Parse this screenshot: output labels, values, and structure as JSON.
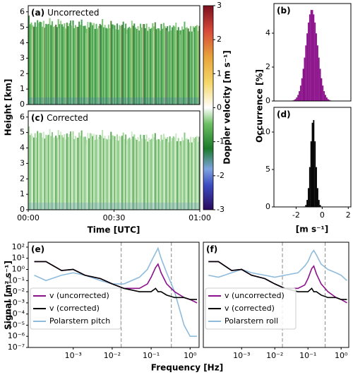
{
  "chart_data": [
    {
      "type": "heatmap",
      "panel": "(a)",
      "title": "Uncorrected",
      "ylabel": "Height [km]",
      "xlim": [
        0,
        60
      ],
      "ylim": [
        0,
        6.4
      ],
      "yticks": [
        0,
        1,
        2,
        3,
        4,
        5,
        6
      ],
      "colorbar": {
        "label": "Doppler velocity [m s⁻¹]",
        "lim": [
          -3,
          3
        ],
        "ticks": [
          -3,
          -2,
          -1,
          0,
          1,
          2,
          3
        ]
      }
    },
    {
      "type": "heatmap",
      "panel": "(c)",
      "title": "Corrected",
      "xlabel": "Time [UTC]",
      "xlim": [
        0,
        60
      ],
      "ylim": [
        0,
        6.4
      ],
      "yticks": [
        0,
        1,
        2,
        3,
        4,
        5,
        6
      ],
      "xticks": [
        {
          "value": 0,
          "label": "00:00"
        },
        {
          "value": 30,
          "label": "00:30"
        },
        {
          "value": 60,
          "label": "01:00"
        }
      ]
    },
    {
      "type": "histogram",
      "panel": "(b)",
      "color": "#8b118b",
      "ylabel": "Occurrence [%]",
      "xlim": [
        -3.7,
        2.2
      ],
      "ylim": [
        0,
        5.75
      ],
      "yticks": [
        0,
        2,
        4
      ],
      "bins": [
        -2.5,
        -2.4,
        -2.3,
        -2.2,
        -2.1,
        -2.0,
        -1.9,
        -1.8,
        -1.7,
        -1.6,
        -1.5,
        -1.4,
        -1.3,
        -1.2,
        -1.1,
        -1.0,
        -0.9,
        -0.8,
        -0.7,
        -0.6,
        -0.5,
        -0.4,
        -0.3,
        -0.2,
        -0.1,
        0.0,
        0.1,
        0.2,
        0.3,
        0.4,
        0.5,
        0.6,
        0.7,
        0.8,
        0.9,
        1.0
      ],
      "counts": [
        0.01,
        0.01,
        0.03,
        0.06,
        0.11,
        0.21,
        0.36,
        0.58,
        0.91,
        1.34,
        1.9,
        2.56,
        3.28,
        3.99,
        4.63,
        5.11,
        5.37,
        5.37,
        5.11,
        4.63,
        3.99,
        3.28,
        2.56,
        1.9,
        1.34,
        0.91,
        0.58,
        0.36,
        0.21,
        0.11,
        0.06,
        0.03,
        0.01,
        0.01,
        0.0
      ]
    },
    {
      "type": "histogram",
      "panel": "(d)",
      "color": "#000000",
      "xlabel": "[m s⁻¹]",
      "xlim": [
        -3.7,
        2.2
      ],
      "ylim": [
        0,
        13.3
      ],
      "yticks": [
        0,
        5,
        10
      ],
      "xticks": [
        -2,
        0,
        2
      ],
      "bins": [
        -1.6,
        -1.5,
        -1.4,
        -1.3,
        -1.2,
        -1.1,
        -1.0,
        -0.9,
        -0.8,
        -0.7,
        -0.6,
        -0.5,
        -0.4,
        -0.3,
        -0.2,
        -0.1,
        0.0,
        0.1,
        0.2,
        0.3
      ],
      "counts": [
        0.0,
        0.01,
        0.06,
        0.26,
        0.93,
        2.51,
        5.32,
        8.76,
        11.24,
        11.6,
        8.76,
        5.32,
        2.51,
        0.93,
        0.26,
        0.06,
        0.01,
        0.0,
        0.0
      ]
    },
    {
      "type": "line",
      "panel": "(e)",
      "ylabel": "Signal [m² s⁻¹]",
      "log_x": true,
      "log_y": true,
      "legend": "lower left",
      "xlim": [
        7e-05,
        1.7
      ],
      "ylim": [
        1e-07,
        275
      ],
      "xticks": [
        {
          "value": 0.001,
          "label": "10⁻³"
        },
        {
          "value": 0.01,
          "label": "10⁻²"
        },
        {
          "value": 0.1,
          "label": "10⁻¹"
        },
        {
          "value": 1,
          "label": "10⁰"
        }
      ],
      "yticks": [
        {
          "value": 1e-07,
          "label": "10⁻⁷"
        },
        {
          "value": 1e-06,
          "label": "10⁻⁶"
        },
        {
          "value": 1e-05,
          "label": "10⁻⁵"
        },
        {
          "value": 0.0001,
          "label": "10⁻⁴"
        },
        {
          "value": 0.001,
          "label": "10⁻³"
        },
        {
          "value": 0.01,
          "label": "10⁻²"
        },
        {
          "value": 0.1,
          "label": "10⁻¹"
        },
        {
          "value": 1,
          "label": "10⁰"
        },
        {
          "value": 10,
          "label": "10¹"
        },
        {
          "value": 100,
          "label": "10²"
        }
      ],
      "vlines": [
        0.017,
        0.33
      ],
      "x": [
        0.0001,
        0.0002,
        0.0005,
        0.001,
        0.002,
        0.005,
        0.01,
        0.02,
        0.05,
        0.08,
        0.1,
        0.13,
        0.15,
        0.18,
        0.25,
        0.4,
        0.7,
        1.0,
        1.5
      ],
      "series": [
        {
          "name": "v (uncorrected)",
          "color": "#8b118b",
          "values": [
            5,
            5,
            0.8,
            1,
            0.3,
            0.15,
            0.05,
            0.02,
            0.02,
            0.05,
            0.2,
            1.5,
            3,
            0.5,
            0.05,
            0.01,
            0.003,
            0.002,
            0.001
          ]
        },
        {
          "name": "v (corrected)",
          "color": "#000000",
          "values": [
            5,
            5,
            0.8,
            1,
            0.3,
            0.15,
            0.05,
            0.02,
            0.01,
            0.01,
            0.01,
            0.02,
            0.01,
            0.01,
            0.005,
            0.003,
            0.003,
            0.002,
            0.002
          ]
        },
        {
          "name": "Polarstern pitch",
          "color": "#8fbcdc",
          "values": [
            0.3,
            0.1,
            0.3,
            0.5,
            0.3,
            0.1,
            0.05,
            0.05,
            0.2,
            1,
            5,
            30,
            80,
            10,
            0.5,
            0.01,
            1e-05,
            1e-06,
            1e-06
          ]
        }
      ]
    },
    {
      "type": "line",
      "panel": "(f)",
      "xlabel": "Frequency [Hz]",
      "log_x": true,
      "log_y": true,
      "legend": "lower left",
      "xlim": [
        7e-05,
        1.7
      ],
      "ylim": [
        1e-07,
        275
      ],
      "xticks": [
        {
          "value": 0.001,
          "label": "10⁻³"
        },
        {
          "value": 0.01,
          "label": "10⁻²"
        },
        {
          "value": 0.1,
          "label": "10⁻¹"
        },
        {
          "value": 1,
          "label": "10⁰"
        }
      ],
      "vlines": [
        0.017,
        0.33
      ],
      "x": [
        0.0001,
        0.0002,
        0.0005,
        0.001,
        0.002,
        0.005,
        0.01,
        0.02,
        0.05,
        0.08,
        0.1,
        0.13,
        0.15,
        0.18,
        0.25,
        0.4,
        0.7,
        1.0,
        1.5
      ],
      "series": [
        {
          "name": "v (uncorrected)",
          "color": "#8b118b",
          "values": [
            5,
            5,
            0.8,
            1,
            0.3,
            0.15,
            0.05,
            0.02,
            0.02,
            0.04,
            0.15,
            1.2,
            2,
            0.4,
            0.05,
            0.01,
            0.003,
            0.002,
            0.001
          ]
        },
        {
          "name": "v (corrected)",
          "color": "#000000",
          "values": [
            5,
            5,
            0.8,
            1,
            0.3,
            0.15,
            0.05,
            0.02,
            0.01,
            0.01,
            0.01,
            0.02,
            0.01,
            0.01,
            0.005,
            0.003,
            0.003,
            0.002,
            0.002
          ]
        },
        {
          "name": "Polarstern roll",
          "color": "#8fbcdc",
          "values": [
            0.3,
            0.2,
            0.5,
            1,
            0.5,
            0.3,
            0.2,
            0.3,
            0.5,
            2,
            5,
            30,
            50,
            20,
            3,
            1,
            0.5,
            0.3,
            0.1
          ]
        }
      ]
    }
  ]
}
